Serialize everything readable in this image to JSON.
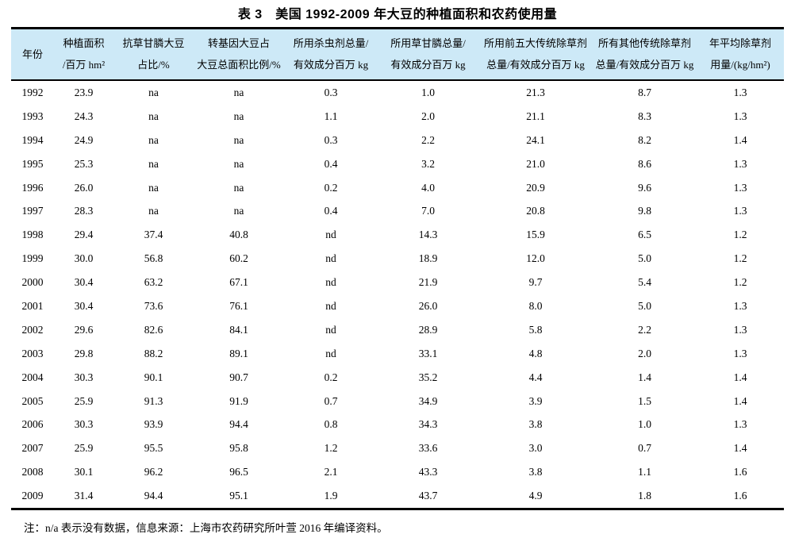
{
  "title": "表 3　美国 1992-2009 年大豆的种植面积和农药使用量",
  "note": "注：n/a 表示没有数据，信息来源：上海市农药研究所叶萱 2016 年编译资料。",
  "colors": {
    "header_bg": "#cde9f7",
    "rule": "#000000",
    "text": "#000000"
  },
  "table": {
    "columns": [
      {
        "top": "年份",
        "bottom": ""
      },
      {
        "top": "种植面积",
        "bottom": "/百万 hm²"
      },
      {
        "top": "抗草甘膦大豆",
        "bottom": "占比/%"
      },
      {
        "top": "转基因大豆占",
        "bottom": "大豆总面积比例/%"
      },
      {
        "top": "所用杀虫剂总量/",
        "bottom": "有效成分百万 kg"
      },
      {
        "top": "所用草甘膦总量/",
        "bottom": "有效成分百万 kg"
      },
      {
        "top": "所用前五大传统除草剂",
        "bottom": "总量/有效成分百万 kg"
      },
      {
        "top": "所有其他传统除草剂",
        "bottom": "总量/有效成分百万 kg"
      },
      {
        "top": "年平均除草剂",
        "bottom": "用量/(kg/hm²)"
      }
    ],
    "rows": [
      [
        "1992",
        "23.9",
        "na",
        "na",
        "0.3",
        "1.0",
        "21.3",
        "8.7",
        "1.3"
      ],
      [
        "1993",
        "24.3",
        "na",
        "na",
        "1.1",
        "2.0",
        "21.1",
        "8.3",
        "1.3"
      ],
      [
        "1994",
        "24.9",
        "na",
        "na",
        "0.3",
        "2.2",
        "24.1",
        "8.2",
        "1.4"
      ],
      [
        "1995",
        "25.3",
        "na",
        "na",
        "0.4",
        "3.2",
        "21.0",
        "8.6",
        "1.3"
      ],
      [
        "1996",
        "26.0",
        "na",
        "na",
        "0.2",
        "4.0",
        "20.9",
        "9.6",
        "1.3"
      ],
      [
        "1997",
        "28.3",
        "na",
        "na",
        "0.4",
        "7.0",
        "20.8",
        "9.8",
        "1.3"
      ],
      [
        "1998",
        "29.4",
        "37.4",
        "40.8",
        "nd",
        "14.3",
        "15.9",
        "6.5",
        "1.2"
      ],
      [
        "1999",
        "30.0",
        "56.8",
        "60.2",
        "nd",
        "18.9",
        "12.0",
        "5.0",
        "1.2"
      ],
      [
        "2000",
        "30.4",
        "63.2",
        "67.1",
        "nd",
        "21.9",
        "9.7",
        "5.4",
        "1.2"
      ],
      [
        "2001",
        "30.4",
        "73.6",
        "76.1",
        "nd",
        "26.0",
        "8.0",
        "5.0",
        "1.3"
      ],
      [
        "2002",
        "29.6",
        "82.6",
        "84.1",
        "nd",
        "28.9",
        "5.8",
        "2.2",
        "1.3"
      ],
      [
        "2003",
        "29.8",
        "88.2",
        "89.1",
        "nd",
        "33.1",
        "4.8",
        "2.0",
        "1.3"
      ],
      [
        "2004",
        "30.3",
        "90.1",
        "90.7",
        "0.2",
        "35.2",
        "4.4",
        "1.4",
        "1.4"
      ],
      [
        "2005",
        "25.9",
        "91.3",
        "91.9",
        "0.7",
        "34.9",
        "3.9",
        "1.5",
        "1.4"
      ],
      [
        "2006",
        "30.3",
        "93.9",
        "94.4",
        "0.8",
        "34.3",
        "3.8",
        "1.0",
        "1.3"
      ],
      [
        "2007",
        "25.9",
        "95.5",
        "95.8",
        "1.2",
        "33.6",
        "3.0",
        "0.7",
        "1.4"
      ],
      [
        "2008",
        "30.1",
        "96.2",
        "96.5",
        "2.1",
        "43.3",
        "3.8",
        "1.1",
        "1.6"
      ],
      [
        "2009",
        "31.4",
        "94.4",
        "95.1",
        "1.9",
        "43.7",
        "4.9",
        "1.8",
        "1.6"
      ]
    ]
  }
}
